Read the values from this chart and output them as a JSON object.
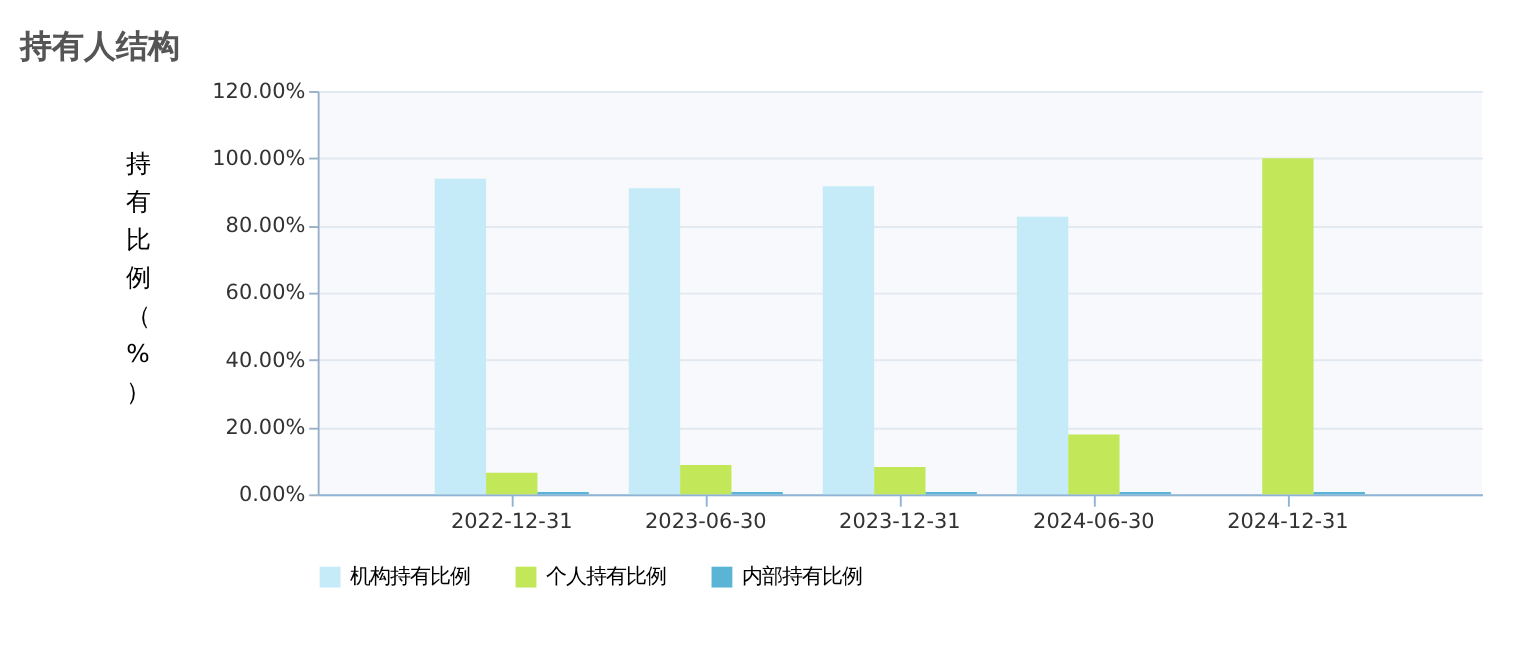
{
  "chart_data": {
    "type": "bar",
    "title": "持有人结构",
    "ylabel": "持有比例（%）",
    "categories": [
      "2022-12-31",
      "2023-06-30",
      "2023-12-31",
      "2024-06-30",
      "2024-12-31"
    ],
    "series": [
      {
        "name": "机构持有比例",
        "color": "#c4ebf7",
        "values": [
          93.9,
          91.1,
          91.7,
          82.6,
          null
        ]
      },
      {
        "name": "个人持有比例",
        "color": "#c2e85a",
        "values": [
          6.4,
          8.7,
          8.1,
          17.8,
          100
        ]
      },
      {
        "name": "内部持有比例",
        "color": "#5ab4d6",
        "values": [
          0.7,
          0.7,
          0.7,
          0.7,
          0.7
        ]
      }
    ],
    "ylim": [
      0,
      120
    ],
    "yticks": [
      {
        "value": 0,
        "label": "0.00%"
      },
      {
        "value": 20,
        "label": "20.00%"
      },
      {
        "value": 40,
        "label": "40.00%"
      },
      {
        "value": 60,
        "label": "60.00%"
      },
      {
        "value": 80,
        "label": "80.00%"
      },
      {
        "value": 100,
        "label": "100.00%"
      },
      {
        "value": 120,
        "label": "120.00%"
      }
    ],
    "grid": "y",
    "legend": "bottom"
  }
}
